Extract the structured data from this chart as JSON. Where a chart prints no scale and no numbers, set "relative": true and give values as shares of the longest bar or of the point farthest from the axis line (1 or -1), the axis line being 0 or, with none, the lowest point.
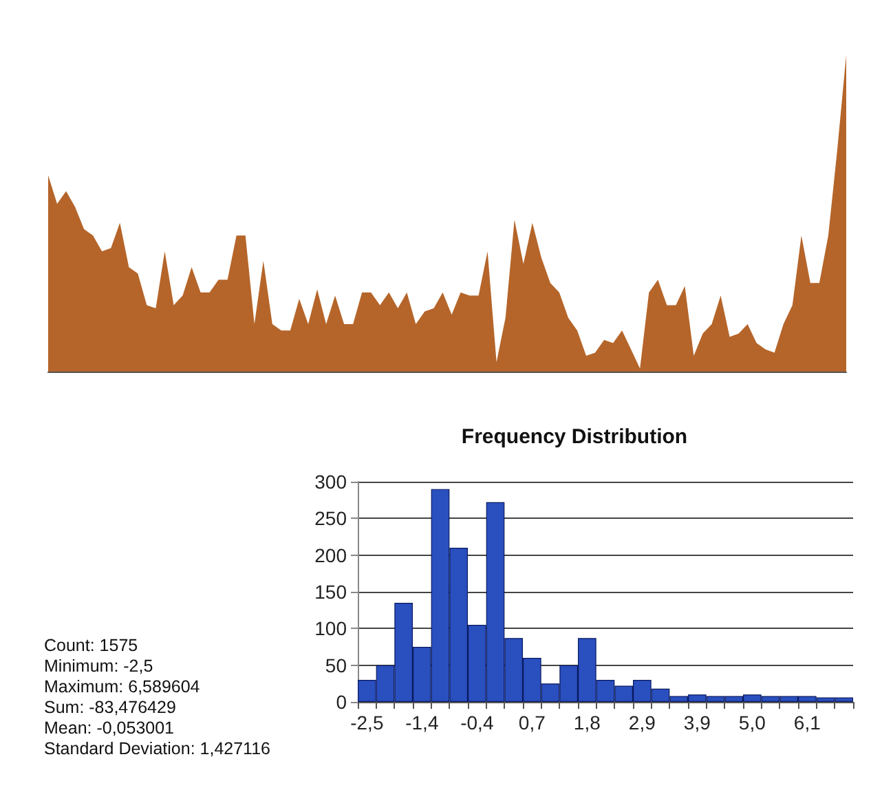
{
  "chart_data": [
    {
      "type": "area",
      "relative": true,
      "color": "#b5652a",
      "grid": false,
      "categories": [
        null,
        null,
        null,
        null,
        null,
        null,
        null,
        null,
        null,
        null,
        null,
        null,
        null,
        null,
        null,
        null,
        null,
        null,
        null,
        null,
        null,
        null,
        null,
        null,
        null,
        null,
        null,
        null,
        null,
        null,
        null,
        null,
        null,
        null,
        null,
        null,
        null,
        null,
        null,
        null,
        null,
        null,
        null,
        null,
        null,
        null,
        null,
        null,
        null,
        null,
        null,
        null,
        null,
        null,
        null,
        null,
        null,
        null,
        null,
        null,
        null,
        null,
        null,
        null,
        null,
        null,
        null,
        null,
        null,
        null,
        null,
        null,
        null,
        null,
        null,
        null,
        null,
        null,
        null,
        null,
        null,
        null,
        null,
        null,
        null,
        null,
        null,
        null,
        null,
        null
      ],
      "values": [
        0.62,
        0.53,
        0.57,
        0.52,
        0.45,
        0.43,
        0.38,
        0.39,
        0.47,
        0.33,
        0.31,
        0.21,
        0.2,
        0.38,
        0.21,
        0.24,
        0.33,
        0.25,
        0.25,
        0.29,
        0.29,
        0.43,
        0.43,
        0.15,
        0.35,
        0.15,
        0.13,
        0.13,
        0.23,
        0.15,
        0.26,
        0.15,
        0.24,
        0.15,
        0.15,
        0.25,
        0.25,
        0.21,
        0.25,
        0.2,
        0.25,
        0.15,
        0.19,
        0.2,
        0.25,
        0.18,
        0.25,
        0.24,
        0.24,
        0.38,
        0.03,
        0.17,
        0.48,
        0.34,
        0.47,
        0.36,
        0.28,
        0.25,
        0.17,
        0.13,
        0.05,
        0.06,
        0.1,
        0.09,
        0.13,
        0.07,
        0.01,
        0.25,
        0.29,
        0.21,
        0.21,
        0.27,
        0.05,
        0.12,
        0.15,
        0.24,
        0.11,
        0.12,
        0.15,
        0.09,
        0.07,
        0.06,
        0.15,
        0.21,
        0.43,
        0.28,
        0.28,
        0.43,
        0.7,
        1
      ]
    },
    {
      "type": "bar",
      "title": "Frequency Distribution",
      "color": "#2a4fbf",
      "grid": "y",
      "categories": [
        "-2,5",
        null,
        null,
        "-1,4",
        null,
        null,
        "-0,4",
        null,
        null,
        "0,7",
        null,
        null,
        "1,8",
        null,
        null,
        "2,9",
        null,
        null,
        "3,9",
        null,
        null,
        "5,0",
        null,
        null,
        "6,1",
        null,
        null
      ],
      "values": [
        30,
        50,
        135,
        75,
        290,
        210,
        105,
        272,
        87,
        60,
        25,
        50,
        87,
        30,
        22,
        30,
        18,
        8,
        10,
        8,
        8,
        10,
        8,
        8,
        8,
        6,
        6
      ],
      "ylim": [
        0,
        300
      ],
      "yticks": [
        0,
        50,
        100,
        150,
        200,
        250,
        300
      ],
      "annotations": [
        "Count: 1575",
        "Minimum: -2,5",
        "Maximum: 6,589604",
        "Sum: -83,476429",
        "Mean: -0,053001",
        "Standard Deviation: 1,427116"
      ]
    }
  ]
}
